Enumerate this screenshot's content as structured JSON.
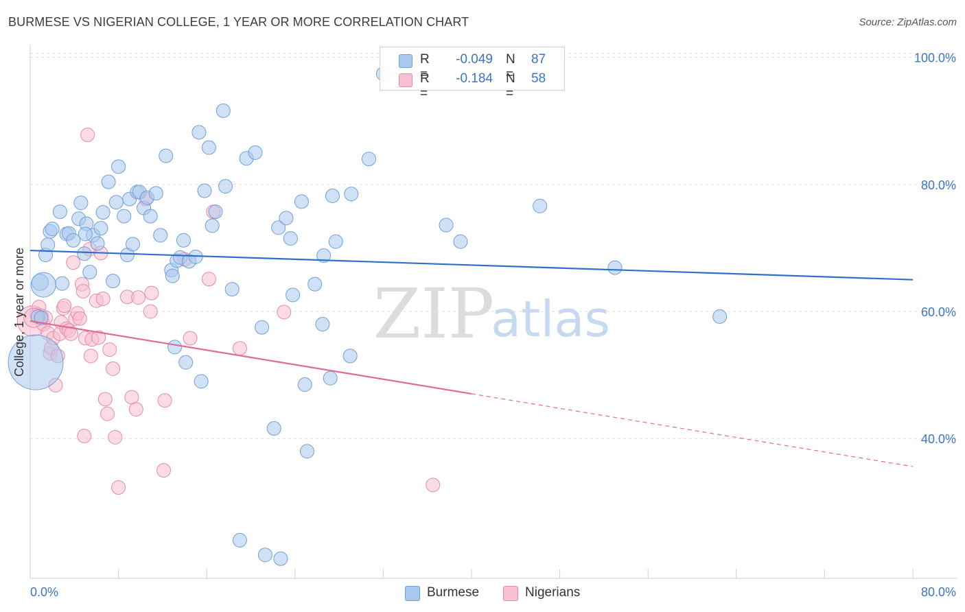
{
  "title": "BURMESE VS NIGERIAN COLLEGE, 1 YEAR OR MORE CORRELATION CHART",
  "source": "Source: ZipAtlas.com",
  "watermark": {
    "zip": "ZIP",
    "atlas": "atlas"
  },
  "legend_top": {
    "rows": [
      {
        "r_label": "R =",
        "r_value": "-0.049",
        "n_label": "N =",
        "n_value": "87"
      },
      {
        "r_label": "R =",
        "r_value": "-0.184",
        "n_label": "N =",
        "n_value": "58"
      }
    ]
  },
  "legend_bottom": {
    "burmese": "Burmese",
    "nigerians": "Nigerians"
  },
  "colors": {
    "blue_fill": "#a9c8ee",
    "blue_stroke": "#6f9fd8",
    "blue_line": "#2f6fcc",
    "pink_fill": "#f7bfd0",
    "pink_stroke": "#e88aa8",
    "pink_line": "#e06a94",
    "axis_label": "#3a74c9",
    "grid": "#dddddd"
  },
  "chart_data": {
    "type": "scatter",
    "title": "BURMESE VS NIGERIAN COLLEGE, 1 YEAR OR MORE CORRELATION CHART",
    "xlabel": "",
    "ylabel": "College, 1 year or more",
    "xlim": [
      0,
      80
    ],
    "ylim": [
      18,
      102
    ],
    "x_tick_labels": [
      "0.0%",
      "80.0%"
    ],
    "y_ticks": [
      40,
      60,
      80,
      100
    ],
    "y_tick_labels": [
      "40.0%",
      "60.0%",
      "80.0%",
      "100.0%"
    ],
    "legend_position": "top-center",
    "series": [
      {
        "name": "Burmese",
        "R": -0.049,
        "N": 87,
        "trend": {
          "x": [
            0,
            80
          ],
          "y": [
            69.6,
            65.0
          ],
          "dashed_from": null
        },
        "points": [
          [
            0.5,
            52.0
          ],
          [
            0.9,
            64.6
          ],
          [
            1.2,
            64.2
          ],
          [
            1.4,
            68.9
          ],
          [
            1.6,
            70.5
          ],
          [
            1.8,
            72.6
          ],
          [
            2.0,
            73.0
          ],
          [
            2.7,
            75.7
          ],
          [
            2.9,
            64.4
          ],
          [
            3.3,
            72.2
          ],
          [
            3.5,
            72.3
          ],
          [
            3.9,
            71.2
          ],
          [
            4.4,
            74.6
          ],
          [
            4.6,
            77.1
          ],
          [
            4.9,
            69.1
          ],
          [
            5.1,
            73.8
          ],
          [
            5.4,
            66.2
          ],
          [
            5.7,
            72.0
          ],
          [
            6.1,
            70.7
          ],
          [
            6.4,
            73.1
          ],
          [
            6.6,
            75.6
          ],
          [
            7.1,
            80.4
          ],
          [
            7.5,
            64.8
          ],
          [
            7.8,
            77.2
          ],
          [
            8.0,
            82.8
          ],
          [
            8.5,
            75.0
          ],
          [
            8.8,
            68.9
          ],
          [
            9.0,
            77.7
          ],
          [
            9.3,
            70.6
          ],
          [
            9.7,
            78.8
          ],
          [
            9.9,
            78.8
          ],
          [
            10.3,
            76.3
          ],
          [
            10.6,
            77.9
          ],
          [
            10.9,
            75.0
          ],
          [
            11.4,
            78.6
          ],
          [
            11.8,
            72.0
          ],
          [
            12.3,
            84.5
          ],
          [
            12.8,
            66.5
          ],
          [
            12.9,
            65.6
          ],
          [
            13.1,
            54.4
          ],
          [
            13.3,
            68.0
          ],
          [
            13.6,
            68.5
          ],
          [
            13.9,
            71.2
          ],
          [
            14.1,
            52.0
          ],
          [
            14.4,
            67.9
          ],
          [
            15.0,
            68.6
          ],
          [
            15.3,
            88.2
          ],
          [
            15.5,
            49.0
          ],
          [
            15.8,
            79.0
          ],
          [
            16.2,
            85.8
          ],
          [
            16.5,
            73.5
          ],
          [
            16.8,
            75.7
          ],
          [
            17.5,
            91.6
          ],
          [
            17.7,
            79.7
          ],
          [
            18.3,
            63.5
          ],
          [
            19.0,
            24.0
          ],
          [
            19.6,
            84.1
          ],
          [
            20.4,
            85.0
          ],
          [
            21.0,
            57.5
          ],
          [
            21.3,
            21.7
          ],
          [
            22.1,
            41.6
          ],
          [
            22.5,
            73.2
          ],
          [
            22.7,
            21.1
          ],
          [
            23.2,
            74.7
          ],
          [
            23.6,
            71.5
          ],
          [
            23.8,
            62.6
          ],
          [
            24.6,
            77.3
          ],
          [
            24.9,
            48.5
          ],
          [
            25.1,
            38.0
          ],
          [
            25.8,
            64.3
          ],
          [
            26.5,
            58.0
          ],
          [
            26.6,
            68.8
          ],
          [
            27.2,
            49.5
          ],
          [
            27.4,
            78.2
          ],
          [
            27.7,
            71.0
          ],
          [
            29.0,
            53.0
          ],
          [
            29.1,
            78.5
          ],
          [
            30.7,
            84.0
          ],
          [
            32.0,
            97.4
          ],
          [
            37.7,
            73.6
          ],
          [
            39.0,
            71.0
          ],
          [
            46.2,
            76.6
          ],
          [
            53.0,
            66.9
          ],
          [
            62.5,
            59.2
          ],
          [
            0.7,
            59.2
          ],
          [
            1.0,
            59.0
          ],
          [
            5.0,
            72.2
          ]
        ],
        "point_size": [
          40,
          12,
          18,
          10,
          10,
          10,
          10,
          10,
          10,
          10,
          10,
          10,
          10,
          10,
          10,
          10,
          10,
          10,
          10,
          10,
          10,
          10,
          10,
          10,
          10,
          10,
          10,
          10,
          10,
          10,
          10,
          10,
          10,
          10,
          10,
          10,
          10,
          10,
          10,
          10,
          10,
          10,
          10,
          10,
          10,
          10,
          10,
          10,
          10,
          10,
          10,
          10,
          10,
          10,
          10,
          10,
          10,
          10,
          10,
          10,
          10,
          10,
          10,
          10,
          10,
          10,
          10,
          10,
          10,
          10,
          10,
          10,
          10,
          10,
          10,
          10,
          10,
          10,
          10,
          10,
          10,
          10,
          10,
          10,
          10,
          10,
          10
        ]
      },
      {
        "name": "Nigerians",
        "R": -0.184,
        "N": 58,
        "trend": {
          "x": [
            0,
            80
          ],
          "y": [
            58.5,
            35.6
          ],
          "dashed_from": 40
        },
        "points": [
          [
            0.2,
            58.5
          ],
          [
            0.6,
            59.5
          ],
          [
            0.8,
            60.7
          ],
          [
            1.0,
            59.3
          ],
          [
            1.2,
            58.0
          ],
          [
            1.4,
            59.0
          ],
          [
            1.6,
            56.6
          ],
          [
            1.8,
            53.4
          ],
          [
            1.9,
            54.3
          ],
          [
            2.1,
            55.8
          ],
          [
            2.3,
            48.4
          ],
          [
            2.5,
            53.0
          ],
          [
            2.7,
            56.5
          ],
          [
            2.8,
            58.3
          ],
          [
            3.0,
            60.5
          ],
          [
            3.1,
            60.9
          ],
          [
            3.3,
            57.3
          ],
          [
            3.5,
            57.0
          ],
          [
            3.7,
            56.5
          ],
          [
            3.9,
            67.7
          ],
          [
            4.1,
            58.9
          ],
          [
            4.3,
            59.7
          ],
          [
            4.5,
            58.9
          ],
          [
            4.7,
            64.3
          ],
          [
            4.8,
            63.2
          ],
          [
            4.9,
            40.4
          ],
          [
            5.0,
            55.8
          ],
          [
            5.2,
            87.8
          ],
          [
            5.4,
            69.8
          ],
          [
            5.5,
            53.0
          ],
          [
            5.6,
            55.6
          ],
          [
            6.0,
            61.7
          ],
          [
            6.2,
            55.9
          ],
          [
            6.4,
            69.2
          ],
          [
            6.6,
            62.0
          ],
          [
            6.8,
            46.2
          ],
          [
            7.0,
            43.9
          ],
          [
            7.2,
            54.0
          ],
          [
            7.5,
            51.0
          ],
          [
            7.7,
            40.2
          ],
          [
            8.0,
            32.3
          ],
          [
            8.8,
            62.3
          ],
          [
            9.2,
            46.5
          ],
          [
            9.6,
            44.6
          ],
          [
            9.8,
            62.2
          ],
          [
            10.5,
            77.7
          ],
          [
            10.9,
            60.0
          ],
          [
            11.0,
            62.9
          ],
          [
            12.2,
            46.0
          ],
          [
            12.1,
            35.0
          ],
          [
            14.0,
            68.2
          ],
          [
            14.5,
            55.8
          ],
          [
            16.2,
            65.1
          ],
          [
            16.6,
            75.7
          ],
          [
            19.0,
            54.2
          ],
          [
            23.0,
            59.9
          ],
          [
            36.5,
            32.7
          ],
          [
            0.3,
            59.0
          ]
        ],
        "point_size": [
          22,
          10,
          10,
          10,
          10,
          10,
          10,
          10,
          10,
          10,
          10,
          10,
          10,
          10,
          10,
          10,
          10,
          10,
          10,
          10,
          10,
          10,
          10,
          10,
          10,
          10,
          10,
          10,
          10,
          10,
          10,
          10,
          10,
          10,
          10,
          10,
          10,
          10,
          10,
          10,
          10,
          10,
          10,
          10,
          10,
          10,
          10,
          10,
          10,
          10,
          10,
          10,
          10,
          10,
          10,
          10,
          10,
          14
        ]
      }
    ]
  }
}
